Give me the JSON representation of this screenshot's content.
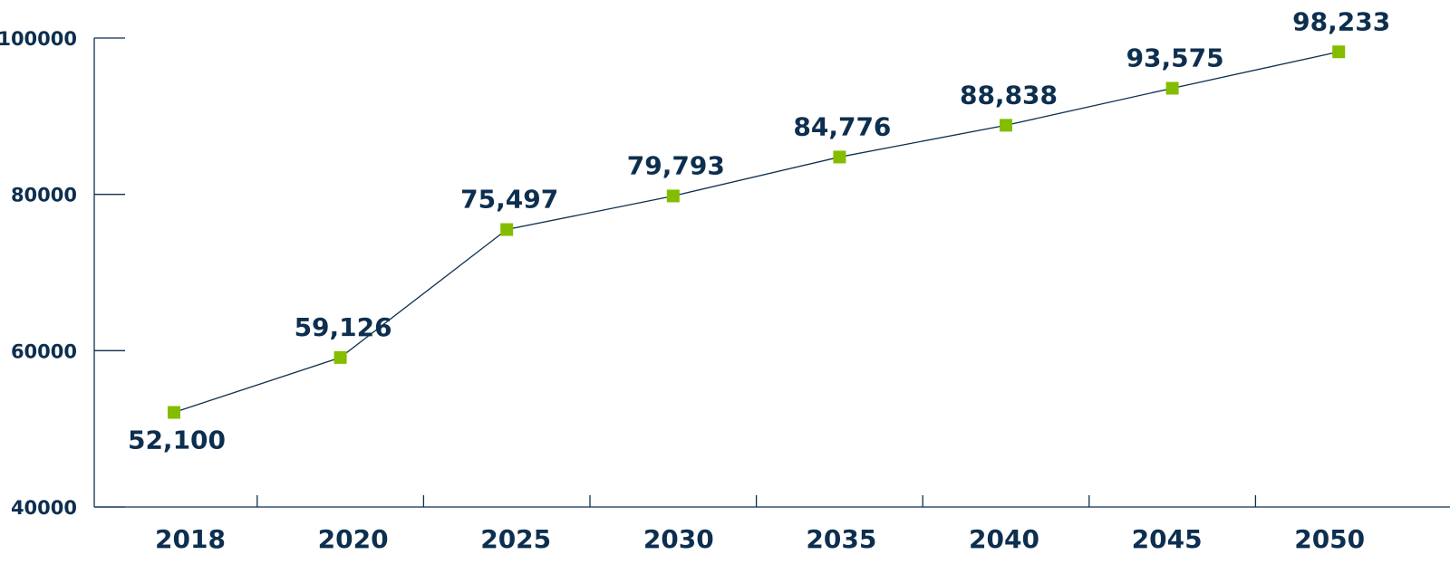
{
  "chart_data": {
    "type": "line",
    "categories": [
      "2018",
      "2020",
      "2025",
      "2030",
      "2035",
      "2040",
      "2045",
      "2050"
    ],
    "values": [
      52100,
      59126,
      75497,
      79793,
      84776,
      88838,
      93575,
      98233
    ],
    "data_labels": [
      "52,100",
      "59,126",
      "75,497",
      "79,793",
      "84,776",
      "88,838",
      "93,575",
      "98,233"
    ],
    "y_ticks": [
      "40000",
      "60000",
      "80000",
      "100000"
    ],
    "ylim": [
      40000,
      100000
    ],
    "title": "",
    "xlabel": "",
    "ylabel": "",
    "grid": false,
    "colors": {
      "axis": "#0d2f4f",
      "text": "#0d2f4f",
      "line": "#0d2f4f",
      "marker": "#84bd00"
    }
  }
}
